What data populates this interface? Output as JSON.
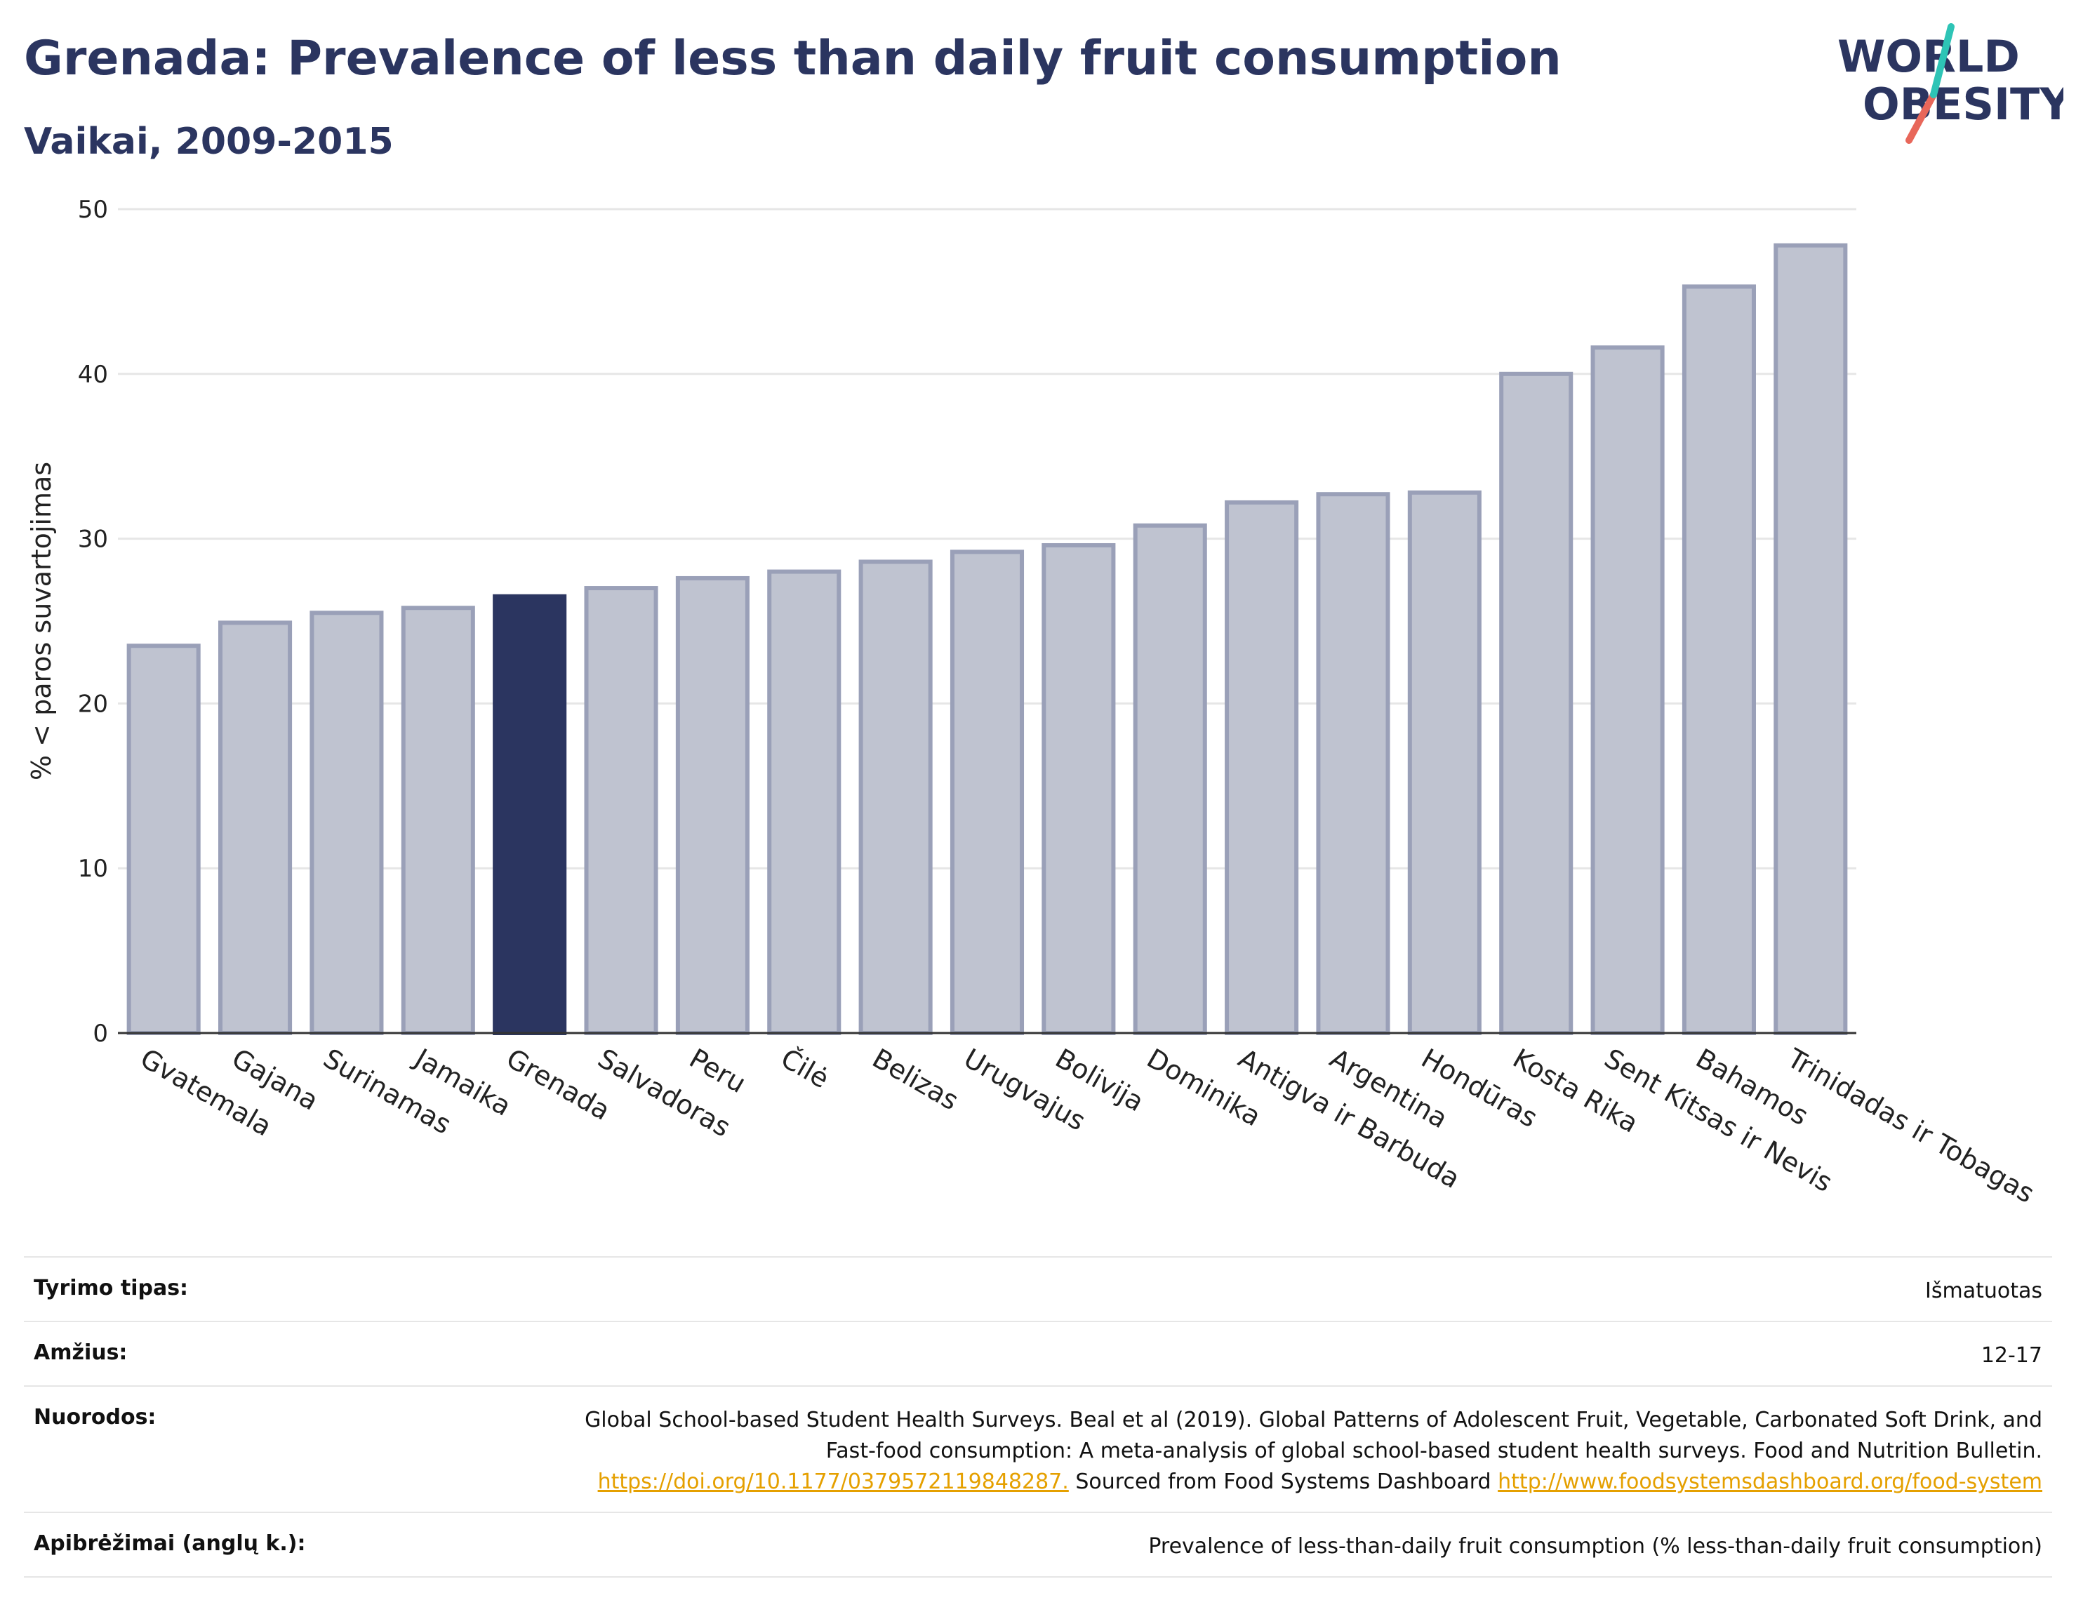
{
  "header": {
    "title": "Grenada: Prevalence of less than daily fruit consumption",
    "subtitle": "Vaikai, 2009-2015"
  },
  "logo": {
    "line1": "WORLD",
    "line2": "OBESITY",
    "colors": {
      "text": "#2b3560",
      "slash_top": "#2ec4b6",
      "slash_bottom": "#e8675a"
    }
  },
  "colors": {
    "bar": "#bfc3d0",
    "bar_border": "#9aa0b8",
    "highlight": "#2b3560",
    "grid": "#e6e6e6",
    "axis": "#333333"
  },
  "chart_data": {
    "type": "bar",
    "title": "Grenada: Prevalence of less than daily fruit consumption",
    "subtitle": "Vaikai, 2009-2015",
    "ylabel": "% < paros suvartojimas",
    "xlabel": "",
    "ylim": [
      0,
      50
    ],
    "yticks": [
      0,
      10,
      20,
      30,
      40,
      50
    ],
    "grid": true,
    "highlight": "Grenada",
    "categories": [
      "Gvatemala",
      "Gajana",
      "Surinamas",
      "Jamaika",
      "Grenada",
      "Salvadoras",
      "Peru",
      "Čilė",
      "Belizas",
      "Urugvajus",
      "Bolivija",
      "Dominika",
      "Antigva ir Barbuda",
      "Argentina",
      "Hondūras",
      "Kosta Rika",
      "Sent Kitsas ir Nevis",
      "Bahamos",
      "Trinidadas ir Tobagas"
    ],
    "values": [
      23.5,
      24.9,
      25.5,
      25.8,
      26.5,
      27.0,
      27.6,
      28.0,
      28.6,
      29.2,
      29.6,
      30.8,
      32.2,
      32.7,
      32.8,
      40.0,
      41.6,
      45.3,
      47.8
    ]
  },
  "info": {
    "rows": [
      {
        "label": "Tyrimo tipas:",
        "value": "Išmatuotas"
      },
      {
        "label": "Amžius:",
        "value": "12-17"
      },
      {
        "label": "Nuorodos:",
        "value_text1": "Global School-based Student Health Surveys. Beal et al (2019). Global Patterns of Adolescent Fruit, Vegetable, Carbonated Soft Drink, and Fast-food consumption: A meta-analysis of global school-based student health surveys. Food and Nutrition Bulletin.",
        "link1": "https://doi.org/10.1177/0379572119848287.",
        "value_text2": "Sourced from Food Systems Dashboard",
        "link2": "http://www.foodsystemsdashboard.org/food-system"
      },
      {
        "label": "Apibrėžimai (anglų k.):",
        "value": "Prevalence of less-than-daily fruit consumption (% less-than-daily fruit consumption)"
      }
    ]
  }
}
